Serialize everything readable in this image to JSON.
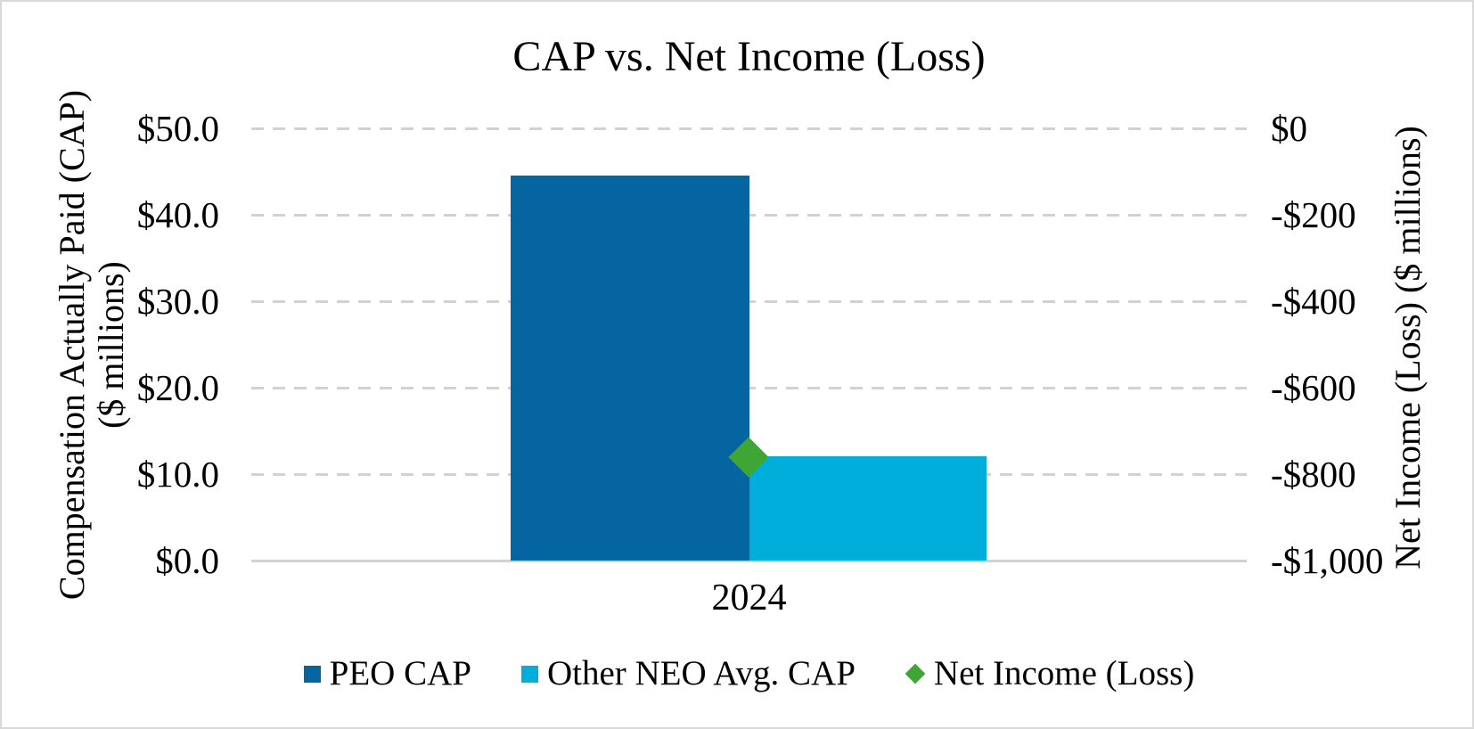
{
  "title": "CAP vs. Net Income (Loss)",
  "left_axis": {
    "title_line1": "Compensation Actually Paid (CAP)",
    "title_line2": "($ millions)",
    "ticks": [
      "$50.0",
      "$40.0",
      "$30.0",
      "$20.0",
      "$10.0",
      "$0.0"
    ]
  },
  "right_axis": {
    "title": "Net Income (Loss) ($ millions)",
    "ticks": [
      "$0",
      "-$200",
      "-$400",
      "-$600",
      "-$800",
      "-$1,000"
    ]
  },
  "x_axis": {
    "category": "2024"
  },
  "legend": {
    "items": [
      {
        "label": "PEO CAP",
        "marker": "square",
        "color": "#0565A1"
      },
      {
        "label": "Other NEO Avg. CAP",
        "marker": "square",
        "color": "#00AEDC"
      },
      {
        "label": "Net Income (Loss)",
        "marker": "diamond",
        "color": "#3FA535"
      }
    ]
  },
  "colors": {
    "peo_bar": "#0565A1",
    "neo_bar": "#00AEDC",
    "net_income_marker": "#3FA535",
    "gridline": "#d2d2d2",
    "text": "#000000",
    "border": "#d9d9d9"
  },
  "chart_data": {
    "type": "bar",
    "title": "CAP vs. Net Income (Loss)",
    "categories": [
      "2024"
    ],
    "series": [
      {
        "name": "PEO CAP",
        "type": "bar",
        "axis": "left",
        "values": [
          44.5
        ],
        "color": "#0565A1"
      },
      {
        "name": "Other NEO Avg. CAP",
        "type": "bar",
        "axis": "left",
        "values": [
          12.1
        ],
        "color": "#00AEDC"
      },
      {
        "name": "Net Income (Loss)",
        "type": "scatter",
        "marker": "diamond",
        "axis": "right",
        "values": [
          -760
        ],
        "color": "#3FA535"
      }
    ],
    "left_ylabel": "Compensation Actually Paid (CAP) ($ millions)",
    "right_ylabel": "Net Income (Loss) ($ millions)",
    "left_ylim": [
      0,
      50
    ],
    "left_tick_step": 10,
    "right_ylim": [
      -1000,
      0
    ],
    "right_tick_step": 200,
    "grid": "dashed-horizontal",
    "legend_position": "bottom"
  }
}
